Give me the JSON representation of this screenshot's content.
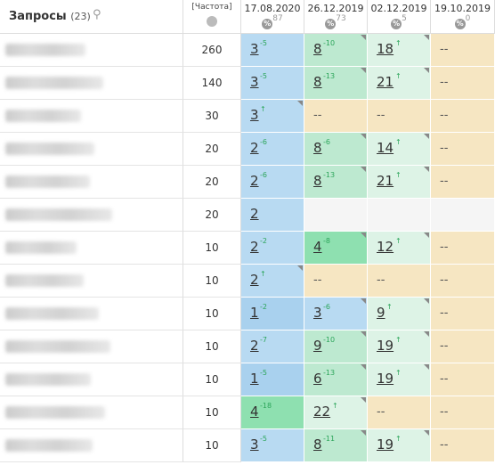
{
  "header": {
    "title": "Запросы",
    "count": "(23)",
    "frequency_label": "[Частота]",
    "dates": [
      {
        "date": "17.08.2020",
        "sub": "87"
      },
      {
        "date": "26.12.2019",
        "sub": "73"
      },
      {
        "date": "02.12.2019",
        "sub": "5"
      },
      {
        "date": "19.10.2019",
        "sub": "0"
      }
    ]
  },
  "rows": [
    {
      "freq": "260",
      "cells": [
        {
          "v": "3",
          "d": "-5",
          "c": "blue"
        },
        {
          "v": "8",
          "d": "-10",
          "c": "green"
        },
        {
          "v": "18",
          "d": "↑",
          "c": "lgreen"
        },
        {
          "v": "--",
          "c": "beige"
        }
      ]
    },
    {
      "freq": "140",
      "cells": [
        {
          "v": "3",
          "d": "-5",
          "c": "blue"
        },
        {
          "v": "8",
          "d": "-13",
          "c": "green"
        },
        {
          "v": "21",
          "d": "↑",
          "c": "lgreen"
        },
        {
          "v": "--",
          "c": "beige"
        }
      ]
    },
    {
      "freq": "30",
      "cells": [
        {
          "v": "3",
          "d": "↑",
          "c": "blue"
        },
        {
          "v": "--",
          "c": "beige"
        },
        {
          "v": "--",
          "c": "beige"
        },
        {
          "v": "--",
          "c": "beige"
        }
      ]
    },
    {
      "freq": "20",
      "cells": [
        {
          "v": "2",
          "d": "-6",
          "c": "blue"
        },
        {
          "v": "8",
          "d": "-6",
          "c": "green"
        },
        {
          "v": "14",
          "d": "↑",
          "c": "lgreen"
        },
        {
          "v": "--",
          "c": "beige"
        }
      ]
    },
    {
      "freq": "20",
      "cells": [
        {
          "v": "2",
          "d": "-6",
          "c": "blue"
        },
        {
          "v": "8",
          "d": "-13",
          "c": "green"
        },
        {
          "v": "21",
          "d": "↑",
          "c": "lgreen"
        },
        {
          "v": "--",
          "c": "beige"
        }
      ]
    },
    {
      "freq": "20",
      "cells": [
        {
          "v": "2",
          "d": "",
          "c": "blue"
        },
        {
          "v": "",
          "c": "empty"
        },
        {
          "v": "",
          "c": "empty"
        },
        {
          "v": "",
          "c": "empty"
        }
      ]
    },
    {
      "freq": "10",
      "cells": [
        {
          "v": "2",
          "d": "-2",
          "c": "blue"
        },
        {
          "v": "4",
          "d": "-8",
          "c": "green2"
        },
        {
          "v": "12",
          "d": "↑",
          "c": "lgreen"
        },
        {
          "v": "--",
          "c": "beige"
        }
      ]
    },
    {
      "freq": "10",
      "cells": [
        {
          "v": "2",
          "d": "↑",
          "c": "blue"
        },
        {
          "v": "--",
          "c": "beige"
        },
        {
          "v": "--",
          "c": "beige"
        },
        {
          "v": "--",
          "c": "beige"
        }
      ]
    },
    {
      "freq": "10",
      "cells": [
        {
          "v": "1",
          "d": "-2",
          "c": "blue2"
        },
        {
          "v": "3",
          "d": "-6",
          "c": "blue"
        },
        {
          "v": "9",
          "d": "↑",
          "c": "lgreen"
        },
        {
          "v": "--",
          "c": "beige"
        }
      ]
    },
    {
      "freq": "10",
      "cells": [
        {
          "v": "2",
          "d": "-7",
          "c": "blue"
        },
        {
          "v": "9",
          "d": "-10",
          "c": "green"
        },
        {
          "v": "19",
          "d": "↑",
          "c": "lgreen"
        },
        {
          "v": "--",
          "c": "beige"
        }
      ]
    },
    {
      "freq": "10",
      "cells": [
        {
          "v": "1",
          "d": "-5",
          "c": "blue2"
        },
        {
          "v": "6",
          "d": "-13",
          "c": "green"
        },
        {
          "v": "19",
          "d": "↑",
          "c": "lgreen"
        },
        {
          "v": "--",
          "c": "beige"
        }
      ]
    },
    {
      "freq": "10",
      "cells": [
        {
          "v": "4",
          "d": "-18",
          "c": "green2"
        },
        {
          "v": "22",
          "d": "↑",
          "c": "lgreen"
        },
        {
          "v": "--",
          "c": "beige"
        },
        {
          "v": "--",
          "c": "beige"
        }
      ]
    },
    {
      "freq": "10",
      "cells": [
        {
          "v": "3",
          "d": "-5",
          "c": "blue"
        },
        {
          "v": "8",
          "d": "-11",
          "c": "green"
        },
        {
          "v": "19",
          "d": "↑",
          "c": "lgreen"
        },
        {
          "v": "--",
          "c": "beige"
        }
      ]
    }
  ],
  "colors": {
    "blue": "#b8daf2",
    "green": "#bde9d0",
    "green2": "#8ee0b0",
    "lgreen": "#ddf3e6",
    "beige": "#f6e6c2",
    "delta": "#2ca55a"
  },
  "icons": {
    "search": "search-icon",
    "globe": "globe-icon",
    "percent": "percent-icon"
  }
}
